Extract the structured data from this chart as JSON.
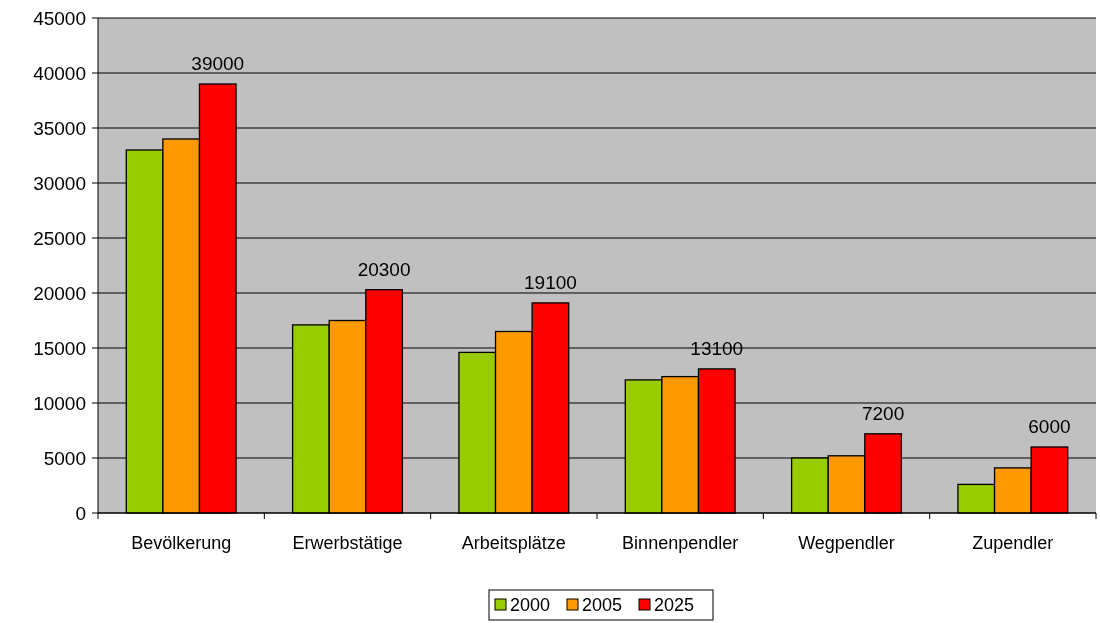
{
  "chart_data": {
    "type": "bar",
    "categories": [
      "Bevölkerung",
      "Erwerbstätige",
      "Arbeitsplätze",
      "Binnenpendler",
      "Wegpendler",
      "Zupendler"
    ],
    "series": [
      {
        "name": "2000",
        "color": "#99cc00",
        "values": [
          33000,
          17100,
          14600,
          12100,
          5000,
          2600
        ]
      },
      {
        "name": "2005",
        "color": "#ff9900",
        "values": [
          34000,
          17500,
          16500,
          12400,
          5200,
          4100
        ]
      },
      {
        "name": "2025",
        "color": "#ff0000",
        "values": [
          39000,
          20300,
          19100,
          13100,
          7200,
          6000
        ],
        "value_labels": [
          "39000",
          "20300",
          "19100",
          "13100",
          "7200",
          "6000"
        ]
      }
    ],
    "ylim": [
      0,
      45000
    ],
    "yticks": [
      0,
      5000,
      10000,
      15000,
      20000,
      25000,
      30000,
      35000,
      40000,
      45000
    ],
    "grid": "y",
    "legend": "bottom"
  }
}
